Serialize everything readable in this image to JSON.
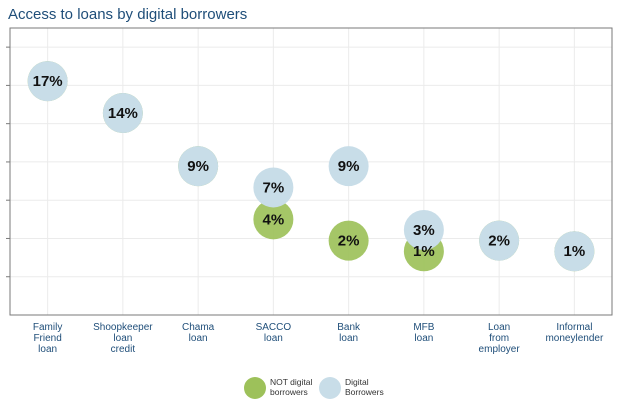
{
  "chart_data": {
    "type": "scatter",
    "title": "Access to loans by digital borrowers",
    "categories": [
      [
        "Family",
        "Friend",
        "loan"
      ],
      [
        "Shoopkeeper",
        "loan",
        "credit"
      ],
      [
        "Chama",
        "loan"
      ],
      [
        "SACCO",
        "loan"
      ],
      [
        "Bank",
        "loan"
      ],
      [
        "MFB",
        "loan"
      ],
      [
        "Loan",
        "from",
        "employer"
      ],
      [
        "Informal",
        "moneylender"
      ]
    ],
    "series": [
      {
        "name_lines": [
          "NOT digital",
          "borrowers"
        ],
        "color": "#9dc15a",
        "values": [
          17,
          14,
          9,
          4,
          2,
          1,
          2,
          1
        ],
        "labels": [
          "17%",
          "14%",
          "9%",
          "4%",
          "2%",
          "1%",
          "",
          "1%"
        ]
      },
      {
        "name_lines": [
          "Digital",
          "Borrowers"
        ],
        "color": "#c8dde8",
        "values": [
          17,
          14,
          9,
          7,
          9,
          3,
          2,
          1
        ],
        "labels": [
          "",
          "",
          "",
          "7%",
          "9%",
          "3%",
          "2%",
          ""
        ]
      }
    ],
    "ylim": [
      -5,
      22
    ],
    "grid": true,
    "legend_position": "bottom"
  }
}
